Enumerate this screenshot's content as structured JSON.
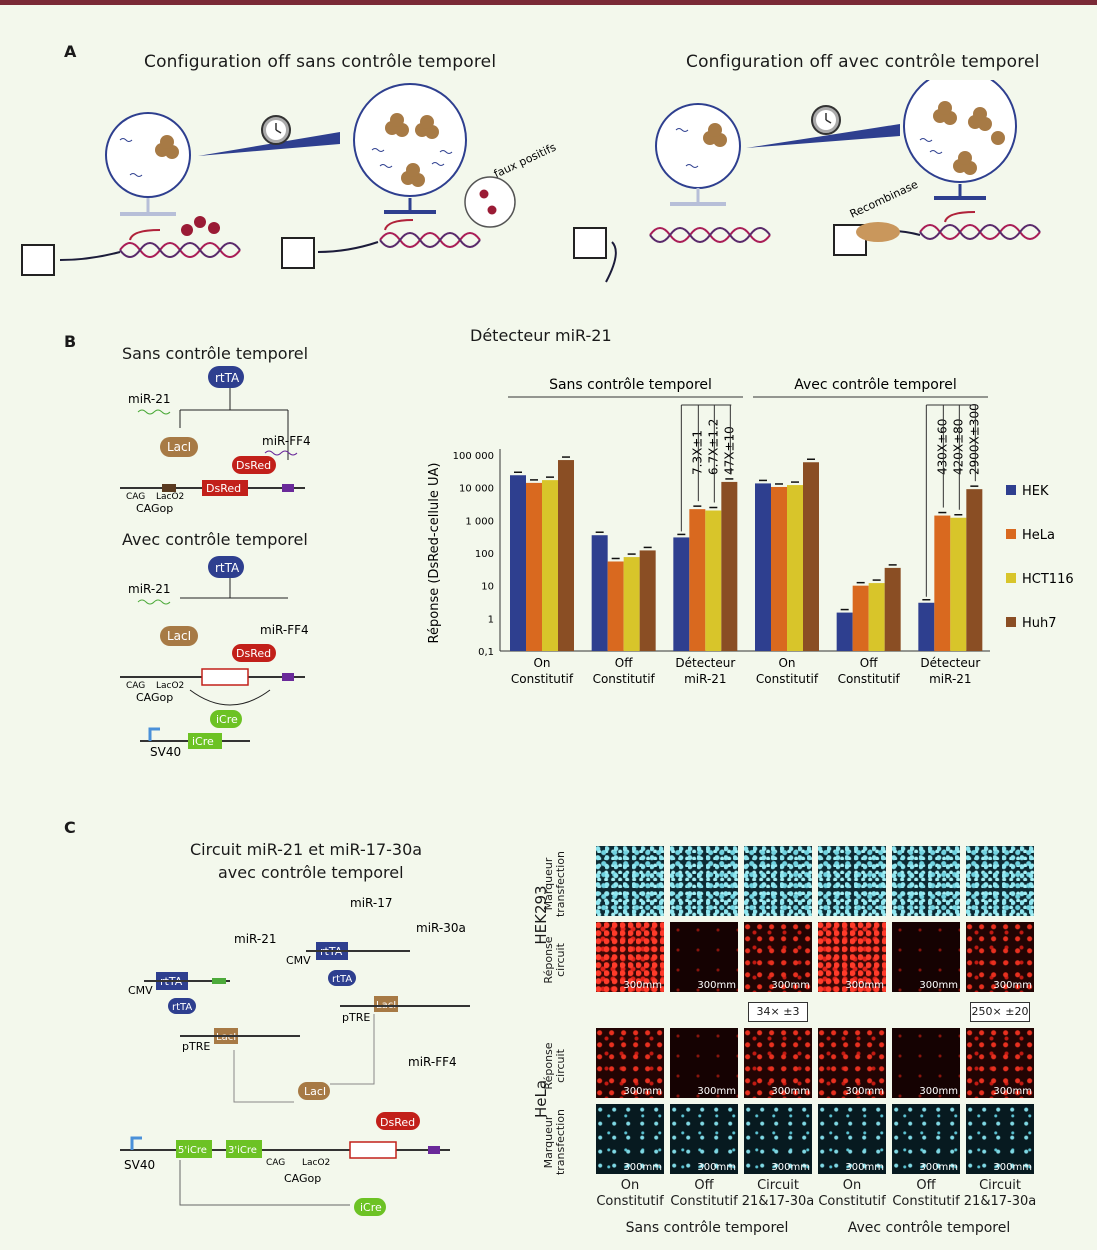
{
  "panelA": {
    "letter": "A",
    "left_title": "Configuration off sans contrôle temporel",
    "right_title": "Configuration off avec contrôle temporel",
    "faux_positifs": "faux positifs",
    "recombinase": "Recombinase"
  },
  "panelB": {
    "letter": "B",
    "sans_title": "Sans contrôle temporel",
    "avec_title": "Avec contrôle temporel",
    "labels": {
      "rtTA": "rtTA",
      "miR21": "miR-21",
      "LacI": "LacI",
      "miRFF4": "miR-FF4",
      "DsRed": "DsRed",
      "CAG": "CAG",
      "LacO2": "LacO2",
      "CAGop": "CAGop",
      "iCre": "iCre",
      "SV40": "SV40"
    }
  },
  "panelC": {
    "letter": "C",
    "title_line1": "Circuit miR-21 et miR-17-30a",
    "title_line2": "avec contrôle temporel",
    "labels": {
      "miR21": "miR-21",
      "miR17": "miR-17",
      "miR30a": "miR-30a",
      "miRFF4": "miR-FF4",
      "rtTA": "rtTA",
      "CMV": "CMV",
      "pTRE": "pTRE",
      "LacI": "LacI",
      "DsRed": "DsRed",
      "SV40": "SV40",
      "iCre5": "5'iCre",
      "iCre3": "3'iCre",
      "CAG": "CAG",
      "LacO2": "LacO2",
      "CAGop": "CAGop",
      "iCre": "iCre"
    },
    "micro": {
      "row_groups": [
        {
          "cell": "HEK293",
          "rows": [
            "Marqueur transfection",
            "Réponse circuit"
          ]
        },
        {
          "cell": "HeLa",
          "rows": [
            "Réponse circuit",
            "Marqueur transfection"
          ]
        }
      ],
      "scale": "300mm",
      "fold_badges": [
        "34× ±3",
        "250× ±20"
      ],
      "columns": [
        {
          "l1": "On",
          "l2": "Constitutif"
        },
        {
          "l1": "Off",
          "l2": "Constitutif"
        },
        {
          "l1": "Circuit",
          "l2": "21&17-30a"
        },
        {
          "l1": "On",
          "l2": "Constitutif"
        },
        {
          "l1": "Off",
          "l2": "Constitutif"
        },
        {
          "l1": "Circuit",
          "l2": "21&17-30a"
        }
      ],
      "groups": [
        "Sans contrôle temporel",
        "Avec contrôle temporel"
      ]
    }
  },
  "chart_data": {
    "type": "bar",
    "title": "Détecteur miR-21",
    "ylabel": "Réponse (DsRed-cellule UA)",
    "yscale": "log",
    "ylim": [
      0.1,
      100000
    ],
    "ytick_labels": [
      "0,1",
      "1",
      "10",
      "100",
      "1 000",
      "10 000",
      "100 000"
    ],
    "group_headers": [
      "Sans contrôle temporel",
      "Avec contrôle temporel"
    ],
    "categories": [
      [
        "On",
        "Constitutif"
      ],
      [
        "Off",
        "Constitutif"
      ],
      [
        "Détecteur",
        "miR-21"
      ],
      [
        "On",
        "Constitutif"
      ],
      [
        "Off",
        "Constitutif"
      ],
      [
        "Détecteur",
        "miR-21"
      ]
    ],
    "series": [
      {
        "name": "HEK",
        "color": "#2e3f8f",
        "values": [
          24000,
          350,
          300,
          13500,
          1.5,
          3
        ]
      },
      {
        "name": "HeLa",
        "color": "#d9691f",
        "values": [
          14000,
          55,
          2200,
          10500,
          10,
          1400
        ]
      },
      {
        "name": "HCT116",
        "color": "#d8c52a",
        "values": [
          17000,
          75,
          2000,
          12000,
          12,
          1200
        ]
      },
      {
        "name": "Huh7",
        "color": "#8a4e24",
        "values": [
          70000,
          120,
          15000,
          60000,
          35,
          9000
        ]
      }
    ],
    "fold_annotations": [
      [
        "7.3X±1",
        "6.7X±1.2",
        "47X±10"
      ],
      [
        "430X±60",
        "420X±80",
        "2900X±300"
      ]
    ]
  }
}
